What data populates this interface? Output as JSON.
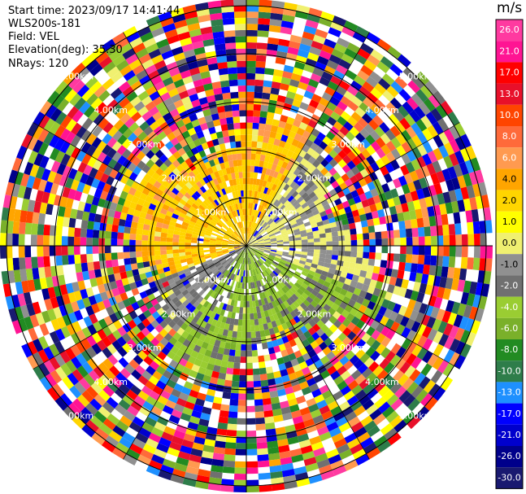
{
  "header": {
    "start_time": "Start time: 2023/09/17 14:41:44",
    "instrument": "WLS200s-181",
    "field": "Field: VEL",
    "elevation": "Elevation(deg): 35.30",
    "nrays": "NRays: 120"
  },
  "colorbar": {
    "units": "m/s",
    "ticks": [
      "26.0",
      "21.0",
      "17.0",
      "13.0",
      "10.0",
      "8.0",
      "6.0",
      "4.0",
      "2.0",
      "1.0",
      "0.0",
      "-1.0",
      "-2.0",
      "-4.0",
      "-6.0",
      "-8.0",
      "-10.0",
      "-13.0",
      "-17.0",
      "-21.0",
      "-26.0",
      "-30.0"
    ],
    "colors": [
      "#ff3aa0",
      "#ff1493",
      "#ff0000",
      "#e8102a",
      "#ff4500",
      "#ff6a3a",
      "#ff9a50",
      "#ffa500",
      "#ffd500",
      "#ffff00",
      "#f0f070",
      "#909090",
      "#707070",
      "#9acd32",
      "#7ab02a",
      "#228b22",
      "#2e7d4a",
      "#1e90ff",
      "#0000ff",
      "#0000cd",
      "#00008b",
      "#191970"
    ]
  },
  "chart_data": {
    "type": "heatmap",
    "projection": "polar (PPI)",
    "field": "VEL",
    "units": "m/s",
    "nrays": 120,
    "elevation_deg": 35.3,
    "range_rings_km": [
      1.0,
      2.0,
      3.0,
      4.0,
      5.0
    ],
    "ring_labels": [
      "1.00km",
      "2.00km",
      "3.00km",
      "4.00km",
      "5.00km"
    ],
    "color_levels": [
      -30.0,
      -26.0,
      -21.0,
      -17.0,
      -13.0,
      -10.0,
      -8.0,
      -6.0,
      -4.0,
      -2.0,
      -1.0,
      0.0,
      1.0,
      2.0,
      4.0,
      6.0,
      8.0,
      10.0,
      13.0,
      17.0,
      21.0,
      26.0
    ],
    "regions": [
      {
        "sector": "west / north-west, near range",
        "velocity_range": [
          2.0,
          6.0
        ],
        "description": "positive (yellow/orange)"
      },
      {
        "sector": "north-east, near range",
        "velocity_range": [
          -2.0,
          0.0
        ],
        "description": "near zero (grey/olive)"
      },
      {
        "sector": "south / south-east, near range",
        "velocity_range": [
          -8.0,
          -2.0
        ],
        "description": "negative (green)"
      },
      {
        "sector": "all azimuths, far range",
        "velocity_range": [
          -30.0,
          26.0
        ],
        "description": "noise (all colors)"
      }
    ]
  }
}
